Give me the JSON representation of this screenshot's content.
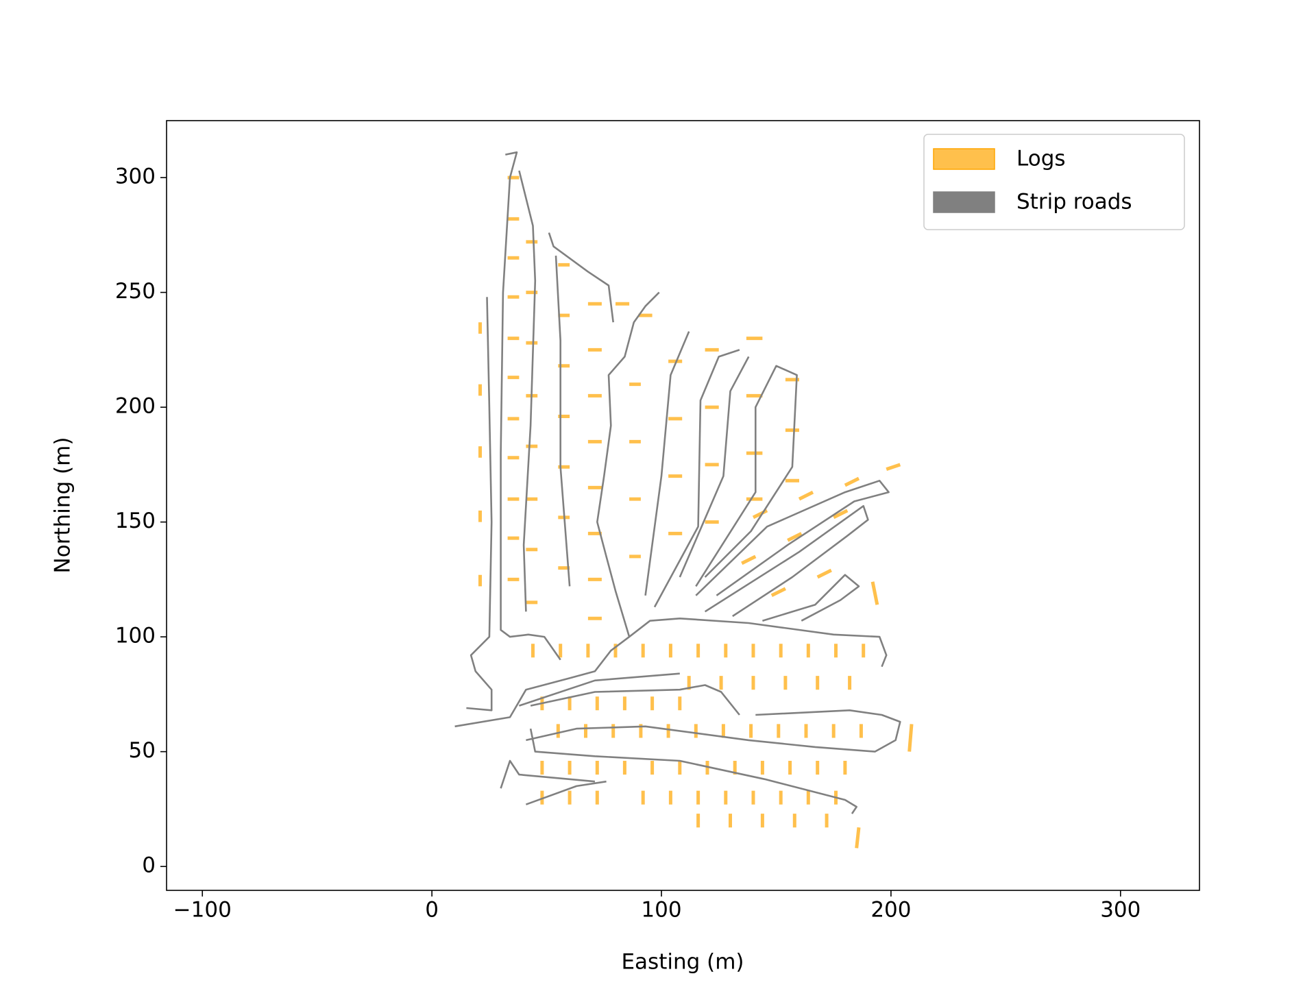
{
  "chart_data": {
    "type": "line",
    "xlabel": "Easting (m)",
    "ylabel": "Northing (m)",
    "xlim": [
      -115.6,
      334.4
    ],
    "ylim": [
      -10.4,
      324.8
    ],
    "xticks": [
      {
        "value": -100,
        "label": "−100"
      },
      0,
      100,
      200,
      300
    ],
    "yticks": [
      0,
      50,
      100,
      150,
      200,
      250,
      300
    ],
    "grid": false,
    "legend": "upper right",
    "series": [
      {
        "name": "Logs",
        "color": "#ffa500",
        "alpha": 0.7,
        "x": [
          33,
          38,
          null,
          33,
          38,
          null,
          33,
          38,
          null,
          33,
          38,
          null,
          33,
          38,
          null,
          33,
          38,
          null,
          33,
          38,
          null,
          33,
          38,
          null,
          33,
          38,
          null,
          33,
          38,
          null,
          33,
          38,
          null,
          21,
          21,
          null,
          21,
          21,
          null,
          21,
          21,
          null,
          21,
          21,
          null,
          21,
          21,
          null,
          41,
          46,
          null,
          41,
          46,
          null,
          41,
          46,
          null,
          41,
          46,
          null,
          41,
          46,
          null,
          41,
          46,
          null,
          41,
          46,
          null,
          41,
          46,
          null,
          55,
          60,
          null,
          55,
          60,
          null,
          55,
          60,
          null,
          55,
          60,
          null,
          55,
          60,
          null,
          55,
          60,
          null,
          55,
          60,
          null,
          68,
          74,
          null,
          68,
          74,
          null,
          68,
          74,
          null,
          68,
          74,
          null,
          68,
          74,
          null,
          68,
          74,
          null,
          68,
          74,
          null,
          68,
          74,
          null,
          80,
          86,
          null,
          90,
          96,
          null,
          86,
          91,
          null,
          86,
          91,
          null,
          86,
          91,
          null,
          86,
          91,
          null,
          103,
          109,
          null,
          103,
          109,
          null,
          103,
          109,
          null,
          103,
          109,
          null,
          119,
          125,
          null,
          119,
          125,
          null,
          119,
          125,
          null,
          119,
          125,
          null,
          137,
          144,
          null,
          137,
          144,
          null,
          137,
          144,
          null,
          137,
          144,
          null,
          154,
          160,
          null,
          154,
          160,
          null,
          154,
          160,
          null,
          140,
          146,
          null,
          160,
          166,
          null,
          180,
          186,
          null,
          198,
          204,
          null,
          135,
          141,
          null,
          155,
          161,
          null,
          175,
          181,
          null,
          148,
          154,
          null,
          168,
          174,
          null,
          192,
          194,
          null,
          44,
          44,
          null,
          56,
          56,
          null,
          68,
          68,
          null,
          80,
          80,
          null,
          92,
          92,
          null,
          104,
          104,
          null,
          116,
          116,
          null,
          128,
          128,
          null,
          140,
          140,
          null,
          152,
          152,
          null,
          164,
          164,
          null,
          176,
          176,
          null,
          188,
          188,
          null,
          112,
          112,
          null,
          126,
          126,
          null,
          140,
          140,
          null,
          154,
          154,
          null,
          168,
          168,
          null,
          182,
          182,
          null,
          48,
          48,
          null,
          60,
          60,
          null,
          72,
          72,
          null,
          84,
          84,
          null,
          96,
          96,
          null,
          108,
          108,
          null,
          55,
          55,
          null,
          67,
          67,
          null,
          79,
          79,
          null,
          91,
          91,
          null,
          103,
          103,
          null,
          115,
          115,
          null,
          127,
          127,
          null,
          139,
          139,
          null,
          151,
          151,
          null,
          163,
          163,
          null,
          175,
          175,
          null,
          187,
          187,
          null,
          48,
          48,
          null,
          60,
          60,
          null,
          72,
          72,
          null,
          84,
          84,
          null,
          96,
          96,
          null,
          108,
          108,
          null,
          120,
          120,
          null,
          132,
          132,
          null,
          144,
          144,
          null,
          156,
          156,
          null,
          168,
          168,
          null,
          180,
          180,
          null,
          48,
          48,
          null,
          60,
          60,
          null,
          72,
          72,
          null,
          92,
          92,
          null,
          104,
          104,
          null,
          116,
          116,
          null,
          128,
          128,
          null,
          140,
          140,
          null,
          152,
          152,
          null,
          164,
          164,
          null,
          176,
          176,
          null,
          116,
          116,
          null,
          130,
          130,
          null,
          144,
          144,
          null,
          158,
          158,
          null,
          172,
          172,
          null,
          185,
          186,
          null,
          208,
          209
        ],
        "values": [
          300,
          300,
          null,
          282,
          282,
          null,
          265,
          265,
          null,
          248,
          248,
          null,
          230,
          230,
          null,
          213,
          213,
          null,
          195,
          195,
          null,
          178,
          178,
          null,
          160,
          160,
          null,
          143,
          143,
          null,
          125,
          125,
          null,
          232,
          237,
          null,
          205,
          210,
          null,
          178,
          183,
          null,
          150,
          155,
          null,
          122,
          127,
          null,
          272,
          272,
          null,
          250,
          250,
          null,
          228,
          228,
          null,
          205,
          205,
          null,
          183,
          183,
          null,
          160,
          160,
          null,
          138,
          138,
          null,
          115,
          115,
          null,
          262,
          262,
          null,
          240,
          240,
          null,
          218,
          218,
          null,
          196,
          196,
          null,
          174,
          174,
          null,
          152,
          152,
          null,
          130,
          130,
          null,
          245,
          245,
          null,
          225,
          225,
          null,
          205,
          205,
          null,
          185,
          185,
          null,
          165,
          165,
          null,
          145,
          145,
          null,
          125,
          125,
          null,
          108,
          108,
          null,
          245,
          245,
          null,
          240,
          240,
          null,
          210,
          210,
          null,
          185,
          185,
          null,
          160,
          160,
          null,
          135,
          135,
          null,
          220,
          220,
          null,
          195,
          195,
          null,
          170,
          170,
          null,
          145,
          145,
          null,
          225,
          225,
          null,
          200,
          200,
          null,
          175,
          175,
          null,
          150,
          150,
          null,
          230,
          230,
          null,
          205,
          205,
          null,
          180,
          180,
          null,
          160,
          160,
          null,
          212,
          212,
          null,
          190,
          190,
          null,
          168,
          168,
          null,
          152,
          155,
          null,
          160,
          163,
          null,
          166,
          169,
          null,
          173,
          175,
          null,
          132,
          135,
          null,
          142,
          145,
          null,
          152,
          155,
          null,
          118,
          121,
          null,
          126,
          129,
          null,
          124,
          114,
          null,
          91,
          97,
          null,
          91,
          97,
          null,
          91,
          97,
          null,
          91,
          97,
          null,
          91,
          97,
          null,
          91,
          97,
          null,
          91,
          97,
          null,
          91,
          97,
          null,
          91,
          97,
          null,
          91,
          97,
          null,
          91,
          97,
          null,
          91,
          97,
          null,
          91,
          97,
          null,
          77,
          83,
          null,
          77,
          83,
          null,
          77,
          83,
          null,
          77,
          83,
          null,
          77,
          83,
          null,
          77,
          83,
          null,
          68,
          74,
          null,
          68,
          74,
          null,
          68,
          74,
          null,
          68,
          74,
          null,
          68,
          74,
          null,
          68,
          74,
          null,
          56,
          62,
          null,
          56,
          62,
          null,
          56,
          62,
          null,
          56,
          62,
          null,
          56,
          62,
          null,
          56,
          62,
          null,
          56,
          62,
          null,
          56,
          62,
          null,
          56,
          62,
          null,
          56,
          62,
          null,
          56,
          62,
          null,
          56,
          62,
          null,
          40,
          46,
          null,
          40,
          46,
          null,
          40,
          46,
          null,
          40,
          46,
          null,
          40,
          46,
          null,
          40,
          46,
          null,
          40,
          46,
          null,
          40,
          46,
          null,
          40,
          46,
          null,
          40,
          46,
          null,
          40,
          46,
          null,
          40,
          46,
          null,
          27,
          33,
          null,
          27,
          33,
          null,
          27,
          33,
          null,
          27,
          33,
          null,
          27,
          33,
          null,
          27,
          33,
          null,
          27,
          33,
          null,
          27,
          33,
          null,
          27,
          33,
          null,
          27,
          33,
          null,
          27,
          33,
          null,
          17,
          23,
          null,
          17,
          23,
          null,
          17,
          23,
          null,
          17,
          23,
          null,
          17,
          23,
          null,
          8,
          17,
          null,
          50,
          62
        ]
      },
      {
        "name": "Strip roads",
        "color": "#808080",
        "x": [
          10,
          34,
          41,
          60,
          71,
          78,
          86,
          95,
          108,
          138,
          175,
          195,
          198,
          196,
          null,
          86,
          80,
          76,
          72,
          75,
          78,
          77,
          84,
          88,
          93,
          99,
          null,
          24,
          25,
          26,
          25,
          17,
          19,
          26,
          26,
          15,
          null,
          32,
          37,
          34,
          31,
          30,
          30,
          34,
          42,
          49,
          56,
          null,
          38,
          44,
          45,
          43,
          40,
          41,
          null,
          51,
          53,
          68,
          77,
          79,
          null,
          54,
          56,
          56,
          60,
          null,
          93,
          100,
          104,
          112,
          null,
          97,
          116,
          117,
          125,
          134,
          null,
          108,
          127,
          130,
          138,
          null,
          115,
          141,
          141,
          150,
          159,
          157,
          139,
          119,
          null,
          115,
          146,
          180,
          195,
          199,
          184,
          155,
          124,
          null,
          119,
          160,
          188,
          190,
          181,
          157,
          131,
          null,
          144,
          167,
          180,
          186,
          178,
          161,
          null,
          38,
          71,
          108,
          null,
          43,
          71,
          108,
          119,
          126,
          134,
          null,
          41,
          63,
          93,
          138,
          167,
          193,
          202,
          204,
          196,
          182,
          141,
          null,
          43,
          45,
          71,
          108,
          145,
          180,
          185,
          183,
          null,
          30,
          34,
          38,
          71,
          null,
          41,
          63,
          76
        ],
        "values": [
          61,
          65,
          77,
          82,
          85,
          94,
          100,
          107,
          108,
          106,
          101,
          100,
          92,
          87,
          null,
          100,
          120,
          135,
          150,
          170,
          192,
          214,
          222,
          237,
          244,
          250,
          null,
          248,
          200,
          150,
          100,
          92,
          85,
          77,
          68,
          69,
          null,
          310,
          311,
          300,
          250,
          180,
          103,
          100,
          101,
          100,
          90,
          null,
          303,
          279,
          255,
          192,
          140,
          111,
          null,
          276,
          270,
          259,
          253,
          237,
          null,
          266,
          229,
          174,
          122,
          null,
          118,
          170,
          214,
          233,
          null,
          113,
          148,
          203,
          222,
          225,
          null,
          126,
          170,
          207,
          222,
          null,
          122,
          163,
          200,
          218,
          214,
          174,
          146,
          126,
          null,
          118,
          148,
          163,
          168,
          163,
          159,
          140,
          118,
          null,
          111,
          137,
          157,
          151,
          144,
          126,
          109,
          null,
          107,
          114,
          127,
          122,
          116,
          107,
          null,
          70,
          81,
          84,
          null,
          70,
          76,
          77,
          79,
          76,
          66,
          null,
          55,
          60,
          61,
          55,
          52,
          50,
          55,
          63,
          66,
          68,
          66,
          null,
          60,
          50,
          48,
          46,
          38,
          29,
          26,
          23,
          null,
          34,
          46,
          40,
          37,
          null,
          27,
          35,
          37
        ]
      }
    ]
  }
}
